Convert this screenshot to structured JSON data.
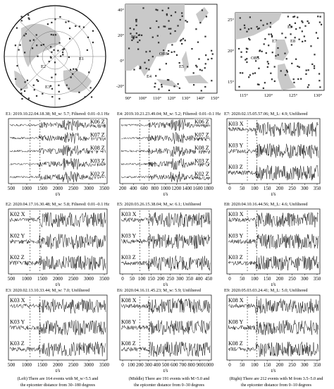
{
  "maps": {
    "lat_ticks": [
      "40°",
      "20°",
      "0°",
      "-20°"
    ],
    "lon_ticks": [
      "90°",
      "100°",
      "110°",
      "120°",
      "130°",
      "140°",
      "150°"
    ],
    "right_lat_ticks": [
      "25°",
      "20°",
      "15°"
    ],
    "right_lon_ticks": [
      "115°",
      "120°",
      "125°",
      "130°"
    ],
    "event_labels_polar": [
      "E1",
      "E2",
      "E3"
    ],
    "event_labels_middle": [
      "E6",
      "OBS",
      "E5",
      "E4"
    ],
    "event_labels_right": [
      "E9",
      "E7",
      "E8",
      "OBS"
    ]
  },
  "panels": [
    {
      "title": "E1: 2019.10.22.04.18.38; M_w: 5.7; Filtered: 0.01–0.1 Hz",
      "traces": [
        "K06  Z",
        "K07  Z",
        "K08  Z",
        "K03  Z",
        "K02  Z"
      ],
      "xticks": [
        "500",
        "1000",
        "1500",
        "2000",
        "2500",
        "3000",
        "3500"
      ],
      "xlabel": "t/s"
    },
    {
      "title": "E4: 2019.10.21.23.49.04; M_w: 5.2; Filtered: 0.01–0.1 Hz",
      "traces": [
        "K06  Z",
        "K07  Z",
        "K08  Z",
        "K03  Z",
        "K02  Z"
      ],
      "xticks": [
        "200",
        "400",
        "600",
        "800",
        "1000",
        "1200",
        "1400",
        "1600",
        "1800"
      ],
      "xlabel": "t/s"
    },
    {
      "title": "E7: 2020.02.15.05.57.06; M_L: 4.9; Unfiltered",
      "traces": [
        "K03  X",
        "K03  Y",
        "K03  Z"
      ],
      "xticks": [
        "0",
        "50",
        "100",
        "150",
        "200",
        "250",
        "300",
        "350"
      ],
      "xlabel": "t/s"
    },
    {
      "title": "E2: 2020.04.17.16.30.48; M_w: 5.8; Filtered: 0.01–0.1 Hz",
      "traces": [
        "K02  X",
        "K02  Y",
        "K02  Z"
      ],
      "xticks": [
        "500",
        "1000",
        "1500",
        "2000",
        "2500",
        "3000",
        "3500"
      ],
      "xlabel": "t/s"
    },
    {
      "title": "E5: 2020.03.26.15.38.04; M_w: 6.1; Unfiltered",
      "traces": [
        "K03  X",
        "K03  Y",
        "K03  Z"
      ],
      "xticks": [
        "0",
        "50",
        "100",
        "150",
        "200",
        "250",
        "300",
        "350",
        "400",
        "450"
      ],
      "xlabel": "t/s"
    },
    {
      "title": "E8: 2020.04.10.16.44.56; M_L: 4.6; Unfiltered",
      "traces": [
        "K03  X",
        "K03  Y",
        "K03  Z"
      ],
      "xticks": [
        "0",
        "50",
        "100",
        "150",
        "200",
        "250",
        "300",
        "350"
      ],
      "xlabel": "t/s"
    },
    {
      "title": "E3: 2020.02.13.10.33.44; M_w: 7.0; Unfiltered",
      "traces": [
        "K03  X",
        "K03  Y",
        "K03  Z"
      ],
      "xticks": [
        "500",
        "1000",
        "1500",
        "2000",
        "2500",
        "3000",
        "3500"
      ],
      "xlabel": "t/s"
    },
    {
      "title": "E6: 2020.04.16.11.45.23; M_w: 5.9; Unfiltered",
      "traces": [
        "K08  X",
        "K08  Y",
        "K08  Z"
      ],
      "xticks": [
        "0",
        "100",
        "200",
        "300",
        "400",
        "500",
        "600",
        "700",
        "800",
        "900",
        "1000"
      ],
      "xlabel": "t/s"
    },
    {
      "title": "E9: 2020.05.03.03.24.41; M_L: 5.0; Unfiltered",
      "traces": [
        "K08  X",
        "K08  Y",
        "K08  Z"
      ],
      "xticks": [
        "0",
        "50",
        "100",
        "150",
        "200",
        "250",
        "300",
        "350"
      ],
      "xlabel": "t/s"
    }
  ],
  "captions": {
    "left": [
      "(Left)  There are 164 events with M_w>5.5 and",
      "the epicenter distance from 30–180 degrees"
    ],
    "middle": [
      "(Middle)  There are 191 events with M>5.0 and",
      "the epicenter distance from 0–30 degrees"
    ],
    "right": [
      "(Right)  There are 212 events with M from 3.5–5.0 and",
      "the epicenter distance from 0–10 degrees"
    ]
  }
}
